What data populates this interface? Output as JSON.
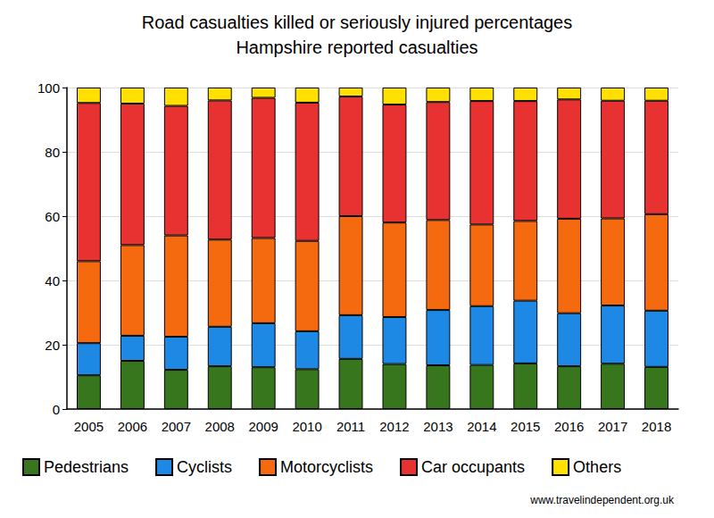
{
  "chart_data": {
    "type": "bar",
    "title": "Road casualties killed or seriously injured percentages",
    "subtitle": "Hampshire reported casualties",
    "annotation": "www.travelindependent.org.uk",
    "categories": [
      "2005",
      "2006",
      "2007",
      "2008",
      "2009",
      "2010",
      "2011",
      "2012",
      "2013",
      "2014",
      "2015",
      "2016",
      "2017",
      "2018"
    ],
    "series": [
      {
        "name": "Pedestrians",
        "color": "#38761d",
        "values": [
          10.5,
          15,
          12.2,
          13.3,
          13,
          12.4,
          15.6,
          14,
          13.6,
          13.7,
          14.2,
          13.3,
          14.1,
          13.1
        ]
      },
      {
        "name": "Cyclists",
        "color": "#1e88e5",
        "values": [
          10,
          7.8,
          10.3,
          12.3,
          13.7,
          11.8,
          13.6,
          14.6,
          17.2,
          18.3,
          19.5,
          16.5,
          18.1,
          17.5
        ]
      },
      {
        "name": "Motorcyclists",
        "color": "#f5690f",
        "values": [
          25.5,
          28.2,
          31.5,
          27.1,
          26.5,
          28.1,
          30.8,
          29.4,
          28,
          25.4,
          24.8,
          29.4,
          27.1,
          30
        ]
      },
      {
        "name": "Car occupants",
        "color": "#e83232",
        "values": [
          49.2,
          44,
          40.3,
          43.3,
          43.6,
          43,
          37.2,
          36.7,
          36.7,
          38.4,
          37.3,
          37.1,
          36.6,
          35.3
        ]
      },
      {
        "name": "Others",
        "color": "#ffe000",
        "values": [
          4.8,
          5,
          5.7,
          4,
          3.2,
          4.7,
          2.8,
          5.3,
          4.5,
          4.2,
          4.2,
          3.7,
          4.1,
          4.1
        ]
      }
    ],
    "stacked": true,
    "ylim": [
      0,
      100
    ],
    "yticks": [
      0,
      20,
      40,
      60,
      80,
      100
    ],
    "grid": true,
    "legend": "bottom"
  }
}
